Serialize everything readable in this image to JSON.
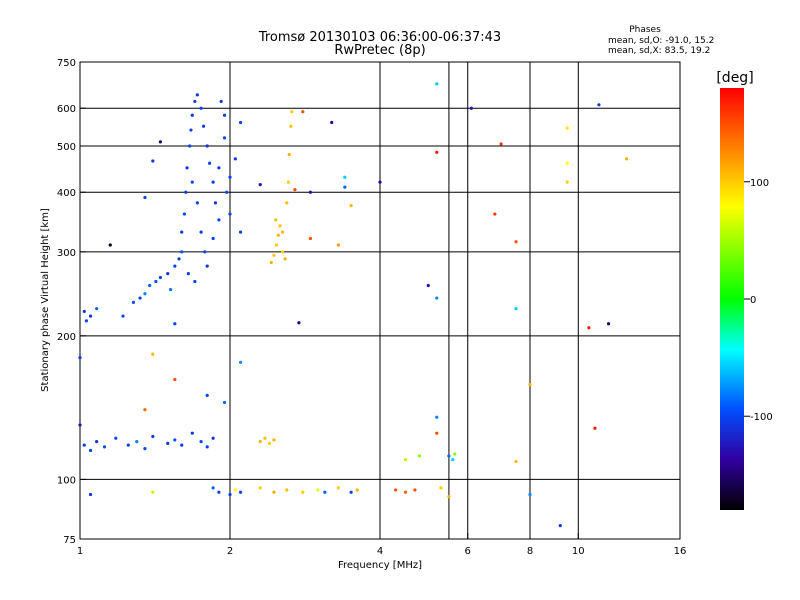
{
  "chart_data": {
    "type": "scatter",
    "title": "Tromsø 20130103 06:36:00-06:37:43",
    "subtitle": "RwPretec (8p)",
    "xlabel": "Frequency [MHz]",
    "ylabel": "Stationary phase Virtual Height [km]",
    "x_scale": "log2",
    "y_scale": "log",
    "xlim": [
      1,
      16
    ],
    "ylim": [
      75,
      750
    ],
    "x_ticks": [
      1,
      2,
      4,
      6,
      8,
      10,
      16
    ],
    "y_ticks": [
      75,
      100,
      200,
      300,
      400,
      500,
      600,
      750
    ],
    "x_grid": [
      2,
      4,
      5.5,
      6,
      8,
      10
    ],
    "y_grid": [
      100,
      200,
      300,
      400,
      500,
      600
    ],
    "legend": {
      "title": "Phases",
      "lines": [
        "mean, sd,O: -91.0, 15.2",
        "mean, sd,X:  83.5, 19.2"
      ],
      "placement": "top-right"
    },
    "colorbar": {
      "label": "[deg]",
      "range": [
        -180,
        180
      ],
      "ticks": [
        100,
        0,
        -100
      ],
      "colors": [
        "#ff0000",
        "#ff8000",
        "#ffff00",
        "#00ff00",
        "#00ffff",
        "#0050ff",
        "#3000a0",
        "#000000"
      ]
    },
    "series": [
      {
        "points": [
          {
            "x": 1.02,
            "y": 225,
            "p": -110
          },
          {
            "x": 1.03,
            "y": 215,
            "p": -100
          },
          {
            "x": 1.05,
            "y": 220,
            "p": -115
          },
          {
            "x": 1.08,
            "y": 228,
            "p": -90
          },
          {
            "x": 1.22,
            "y": 220,
            "p": -100
          },
          {
            "x": 1.28,
            "y": 235,
            "p": -95
          },
          {
            "x": 1.32,
            "y": 240,
            "p": -105
          },
          {
            "x": 1.35,
            "y": 245,
            "p": -80
          },
          {
            "x": 1.38,
            "y": 255,
            "p": -90
          },
          {
            "x": 1.42,
            "y": 260,
            "p": -95
          },
          {
            "x": 1.45,
            "y": 265,
            "p": -100
          },
          {
            "x": 1.5,
            "y": 270,
            "p": -110
          },
          {
            "x": 1.52,
            "y": 250,
            "p": -85
          },
          {
            "x": 1.55,
            "y": 280,
            "p": -100
          },
          {
            "x": 1.58,
            "y": 290,
            "p": -105
          },
          {
            "x": 1.6,
            "y": 300,
            "p": -95
          },
          {
            "x": 1.6,
            "y": 330,
            "p": -110
          },
          {
            "x": 1.62,
            "y": 360,
            "p": -100
          },
          {
            "x": 1.63,
            "y": 400,
            "p": -105
          },
          {
            "x": 1.64,
            "y": 450,
            "p": -110
          },
          {
            "x": 1.66,
            "y": 500,
            "p": -100
          },
          {
            "x": 1.67,
            "y": 540,
            "p": -105
          },
          {
            "x": 1.68,
            "y": 580,
            "p": -110
          },
          {
            "x": 1.7,
            "y": 620,
            "p": -105
          },
          {
            "x": 1.72,
            "y": 640,
            "p": -110
          },
          {
            "x": 1.75,
            "y": 600,
            "p": -100
          },
          {
            "x": 1.77,
            "y": 550,
            "p": -105
          },
          {
            "x": 1.8,
            "y": 500,
            "p": -110
          },
          {
            "x": 1.82,
            "y": 460,
            "p": -100
          },
          {
            "x": 1.85,
            "y": 420,
            "p": -105
          },
          {
            "x": 1.87,
            "y": 380,
            "p": -110
          },
          {
            "x": 1.9,
            "y": 350,
            "p": -100
          },
          {
            "x": 1.92,
            "y": 620,
            "p": -110
          },
          {
            "x": 1.95,
            "y": 580,
            "p": -105
          },
          {
            "x": 1.97,
            "y": 400,
            "p": -100
          },
          {
            "x": 2.0,
            "y": 430,
            "p": -105
          },
          {
            "x": 2.05,
            "y": 470,
            "p": -110
          },
          {
            "x": 2.1,
            "y": 560,
            "p": -100
          },
          {
            "x": 2.1,
            "y": 330,
            "p": -105
          },
          {
            "x": 1.68,
            "y": 420,
            "p": -100
          },
          {
            "x": 1.72,
            "y": 380,
            "p": -105
          },
          {
            "x": 1.75,
            "y": 330,
            "p": -110
          },
          {
            "x": 1.78,
            "y": 300,
            "p": -100
          },
          {
            "x": 1.65,
            "y": 270,
            "p": -105
          },
          {
            "x": 1.7,
            "y": 260,
            "p": -100
          },
          {
            "x": 1.8,
            "y": 280,
            "p": -110
          },
          {
            "x": 1.85,
            "y": 320,
            "p": -105
          },
          {
            "x": 1.9,
            "y": 450,
            "p": -110
          },
          {
            "x": 1.95,
            "y": 520,
            "p": -100
          },
          {
            "x": 2.0,
            "y": 360,
            "p": -105
          },
          {
            "x": 2.42,
            "y": 285,
            "p": 110
          },
          {
            "x": 2.45,
            "y": 295,
            "p": 105
          },
          {
            "x": 2.48,
            "y": 310,
            "p": 100
          },
          {
            "x": 2.5,
            "y": 325,
            "p": 110
          },
          {
            "x": 2.52,
            "y": 340,
            "p": 105
          },
          {
            "x": 2.55,
            "y": 300,
            "p": 100
          },
          {
            "x": 2.58,
            "y": 290,
            "p": 110
          },
          {
            "x": 2.6,
            "y": 380,
            "p": 105
          },
          {
            "x": 2.62,
            "y": 420,
            "p": 100
          },
          {
            "x": 2.63,
            "y": 480,
            "p": 110
          },
          {
            "x": 2.65,
            "y": 550,
            "p": 105
          },
          {
            "x": 2.66,
            "y": 590,
            "p": 100
          },
          {
            "x": 2.55,
            "y": 330,
            "p": 110
          },
          {
            "x": 2.47,
            "y": 350,
            "p": 105
          },
          {
            "x": 1.02,
            "y": 118,
            "p": -105
          },
          {
            "x": 1.05,
            "y": 115,
            "p": -100
          },
          {
            "x": 1.08,
            "y": 120,
            "p": -110
          },
          {
            "x": 1.12,
            "y": 117,
            "p": -95
          },
          {
            "x": 1.18,
            "y": 122,
            "p": -100
          },
          {
            "x": 1.25,
            "y": 118,
            "p": -105
          },
          {
            "x": 1.3,
            "y": 120,
            "p": -80
          },
          {
            "x": 1.35,
            "y": 116,
            "p": -100
          },
          {
            "x": 1.4,
            "y": 123,
            "p": -105
          },
          {
            "x": 1.5,
            "y": 119,
            "p": -110
          },
          {
            "x": 1.55,
            "y": 121,
            "p": -100
          },
          {
            "x": 1.6,
            "y": 118,
            "p": -105
          },
          {
            "x": 1.68,
            "y": 125,
            "p": -110
          },
          {
            "x": 1.75,
            "y": 120,
            "p": -100
          },
          {
            "x": 1.8,
            "y": 117,
            "p": -105
          },
          {
            "x": 1.85,
            "y": 122,
            "p": -110
          },
          {
            "x": 1.0,
            "y": 130,
            "p": -130
          },
          {
            "x": 1.0,
            "y": 180,
            "p": -110
          },
          {
            "x": 2.3,
            "y": 120,
            "p": 110
          },
          {
            "x": 2.35,
            "y": 122,
            "p": 105
          },
          {
            "x": 2.4,
            "y": 119,
            "p": 100
          },
          {
            "x": 2.45,
            "y": 121,
            "p": 110
          },
          {
            "x": 1.85,
            "y": 96,
            "p": -90
          },
          {
            "x": 1.9,
            "y": 94,
            "p": -100
          },
          {
            "x": 2.0,
            "y": 93,
            "p": -105
          },
          {
            "x": 2.05,
            "y": 95,
            "p": 80
          },
          {
            "x": 2.1,
            "y": 94,
            "p": -100
          },
          {
            "x": 2.3,
            "y": 96,
            "p": 100
          },
          {
            "x": 2.45,
            "y": 94,
            "p": 110
          },
          {
            "x": 2.6,
            "y": 95,
            "p": 105
          },
          {
            "x": 2.8,
            "y": 94,
            "p": 100
          },
          {
            "x": 3.0,
            "y": 95,
            "p": 70
          },
          {
            "x": 3.1,
            "y": 94,
            "p": -90
          },
          {
            "x": 3.3,
            "y": 96,
            "p": 100
          },
          {
            "x": 3.5,
            "y": 94,
            "p": -100
          },
          {
            "x": 3.6,
            "y": 95,
            "p": 110
          },
          {
            "x": 4.3,
            "y": 95,
            "p": 150
          },
          {
            "x": 4.5,
            "y": 94,
            "p": 140
          },
          {
            "x": 4.7,
            "y": 95,
            "p": 150
          },
          {
            "x": 5.3,
            "y": 96,
            "p": 100
          },
          {
            "x": 1.4,
            "y": 94,
            "p": 60
          },
          {
            "x": 1.05,
            "y": 93,
            "p": -110
          },
          {
            "x": 5.5,
            "y": 112,
            "p": -90
          },
          {
            "x": 5.6,
            "y": 110,
            "p": -60
          },
          {
            "x": 5.65,
            "y": 113,
            "p": 40
          },
          {
            "x": 4.5,
            "y": 110,
            "p": 60
          },
          {
            "x": 4.8,
            "y": 112,
            "p": 40
          },
          {
            "x": 7.5,
            "y": 109,
            "p": 110
          },
          {
            "x": 5.2,
            "y": 135,
            "p": -80
          },
          {
            "x": 5.2,
            "y": 125,
            "p": 150
          },
          {
            "x": 5.2,
            "y": 675,
            "p": -60
          },
          {
            "x": 6.1,
            "y": 600,
            "p": -130
          },
          {
            "x": 3.2,
            "y": 560,
            "p": -140
          },
          {
            "x": 4.0,
            "y": 420,
            "p": -140
          },
          {
            "x": 5.2,
            "y": 485,
            "p": 170
          },
          {
            "x": 9.5,
            "y": 545,
            "p": 90
          },
          {
            "x": 9.5,
            "y": 460,
            "p": 80
          },
          {
            "x": 9.5,
            "y": 420,
            "p": 100
          },
          {
            "x": 11.0,
            "y": 610,
            "p": -110
          },
          {
            "x": 12.5,
            "y": 470,
            "p": 110
          },
          {
            "x": 7.0,
            "y": 505,
            "p": 160
          },
          {
            "x": 6.8,
            "y": 360,
            "p": 160
          },
          {
            "x": 7.5,
            "y": 315,
            "p": 150
          },
          {
            "x": 3.4,
            "y": 430,
            "p": -60
          },
          {
            "x": 3.4,
            "y": 410,
            "p": -90
          },
          {
            "x": 2.9,
            "y": 400,
            "p": -130
          },
          {
            "x": 3.5,
            "y": 375,
            "p": 110
          },
          {
            "x": 1.45,
            "y": 510,
            "p": -150
          },
          {
            "x": 1.4,
            "y": 465,
            "p": -110
          },
          {
            "x": 1.35,
            "y": 390,
            "p": -100
          },
          {
            "x": 1.15,
            "y": 310,
            "p": -170
          },
          {
            "x": 5.0,
            "y": 255,
            "p": -130
          },
          {
            "x": 5.2,
            "y": 240,
            "p": -80
          },
          {
            "x": 7.5,
            "y": 228,
            "p": -60
          },
          {
            "x": 10.5,
            "y": 208,
            "p": 170
          },
          {
            "x": 11.5,
            "y": 212,
            "p": -150
          },
          {
            "x": 2.75,
            "y": 213,
            "p": -150
          },
          {
            "x": 1.55,
            "y": 212,
            "p": -100
          },
          {
            "x": 2.1,
            "y": 176,
            "p": -80
          },
          {
            "x": 1.4,
            "y": 183,
            "p": 110
          },
          {
            "x": 1.55,
            "y": 162,
            "p": 150
          },
          {
            "x": 1.8,
            "y": 150,
            "p": -100
          },
          {
            "x": 1.95,
            "y": 145,
            "p": -90
          },
          {
            "x": 8.0,
            "y": 158,
            "p": 110
          },
          {
            "x": 10.8,
            "y": 128,
            "p": 170
          },
          {
            "x": 8.0,
            "y": 93,
            "p": -80
          },
          {
            "x": 9.2,
            "y": 80,
            "p": -110
          },
          {
            "x": 5.5,
            "y": 92,
            "p": 110
          },
          {
            "x": 1.35,
            "y": 140,
            "p": 140
          },
          {
            "x": 2.7,
            "y": 405,
            "p": 150
          },
          {
            "x": 2.8,
            "y": 590,
            "p": 150
          },
          {
            "x": 2.3,
            "y": 415,
            "p": -130
          },
          {
            "x": 3.3,
            "y": 310,
            "p": 120
          },
          {
            "x": 2.9,
            "y": 320,
            "p": 150
          }
        ]
      }
    ]
  }
}
